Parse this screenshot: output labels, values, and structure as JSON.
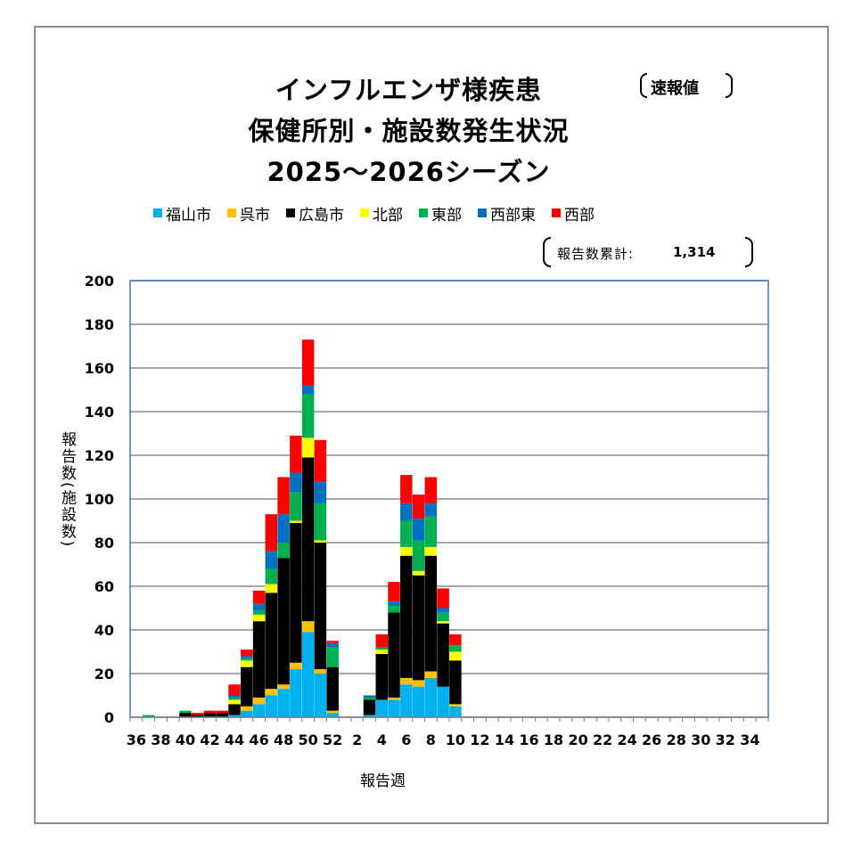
{
  "chart_data": {
    "type": "bar",
    "stacked": true,
    "title_lines": [
      "インフルエンザ様疾患",
      "保健所別・施設数発生状況",
      "2025～2026シーズン"
    ],
    "badge": "速報値",
    "total_label": "報告数累計:",
    "total_value": "1,314",
    "xlabel": "報告週",
    "ylabel": "報告数(施設数)",
    "ylim": [
      0,
      200
    ],
    "yticks": [
      0,
      20,
      40,
      60,
      80,
      100,
      120,
      140,
      160,
      180,
      200
    ],
    "grid": true,
    "legend_position": "top",
    "categories": [
      36,
      37,
      38,
      39,
      40,
      41,
      42,
      43,
      44,
      45,
      46,
      47,
      48,
      49,
      50,
      51,
      52,
      1,
      2,
      3,
      4,
      5,
      6,
      7,
      8,
      9,
      10,
      11,
      12,
      13,
      14,
      15,
      16,
      17,
      18,
      19,
      20,
      21,
      22,
      23,
      24,
      25,
      26,
      27,
      28,
      29,
      30,
      31,
      32,
      33,
      34,
      35
    ],
    "xtick_labels": [
      "36",
      "38",
      "40",
      "42",
      "44",
      "46",
      "48",
      "50",
      "52",
      "2",
      "4",
      "6",
      "8",
      "10",
      "12",
      "14",
      "16",
      "18",
      "20",
      "22",
      "24",
      "26",
      "28",
      "30",
      "32",
      "34"
    ],
    "series": [
      {
        "name": "福山市",
        "color": "#00B0F0",
        "values": [
          0,
          0,
          0,
          0,
          0,
          0,
          0,
          0,
          1,
          3,
          6,
          10,
          13,
          22,
          39,
          20,
          2,
          0,
          0,
          1,
          8,
          8,
          15,
          14,
          18,
          14,
          5,
          0,
          0,
          0,
          0,
          0,
          0,
          0,
          0,
          0,
          0,
          0,
          0,
          0,
          0,
          0,
          0,
          0,
          0,
          0,
          0,
          0,
          0,
          0,
          0,
          0
        ]
      },
      {
        "name": "呉市",
        "color": "#FFC000",
        "values": [
          0,
          0,
          0,
          0,
          0,
          0,
          0,
          0,
          0,
          2,
          3,
          3,
          2,
          3,
          5,
          2,
          1,
          0,
          0,
          0,
          0,
          1,
          3,
          3,
          3,
          0,
          1,
          0,
          0,
          0,
          0,
          0,
          0,
          0,
          0,
          0,
          0,
          0,
          0,
          0,
          0,
          0,
          0,
          0,
          0,
          0,
          0,
          0,
          0,
          0,
          0,
          0
        ]
      },
      {
        "name": "広島市",
        "color": "#000000",
        "values": [
          0,
          0,
          0,
          0,
          2,
          1,
          2,
          2,
          5,
          18,
          35,
          44,
          58,
          64,
          75,
          58,
          20,
          0,
          0,
          7,
          21,
          39,
          56,
          48,
          53,
          29,
          20,
          0,
          0,
          0,
          0,
          0,
          0,
          0,
          0,
          0,
          0,
          0,
          0,
          0,
          0,
          0,
          0,
          0,
          0,
          0,
          0,
          0,
          0,
          0,
          0,
          0
        ]
      },
      {
        "name": "北部",
        "color": "#FFFF00",
        "values": [
          0,
          0,
          0,
          0,
          0,
          0,
          0,
          0,
          2,
          3,
          3,
          4,
          0,
          1,
          9,
          1,
          0,
          0,
          0,
          0,
          2,
          0,
          4,
          2,
          4,
          1,
          4,
          0,
          0,
          0,
          0,
          0,
          0,
          0,
          0,
          0,
          0,
          0,
          0,
          0,
          0,
          0,
          0,
          0,
          0,
          0,
          0,
          0,
          0,
          0,
          0,
          0
        ]
      },
      {
        "name": "東部",
        "color": "#00B050",
        "values": [
          0,
          1,
          0,
          0,
          1,
          0,
          0,
          0,
          1,
          1,
          2,
          7,
          7,
          13,
          20,
          17,
          9,
          0,
          0,
          1,
          1,
          3,
          12,
          14,
          14,
          4,
          3,
          0,
          0,
          0,
          0,
          0,
          0,
          0,
          0,
          0,
          0,
          0,
          0,
          0,
          0,
          0,
          0,
          0,
          0,
          0,
          0,
          0,
          0,
          0,
          0,
          0
        ]
      },
      {
        "name": "西部東",
        "color": "#0070C0",
        "values": [
          0,
          0,
          0,
          0,
          0,
          0,
          0,
          0,
          1,
          1,
          3,
          8,
          13,
          9,
          4,
          10,
          2,
          0,
          0,
          1,
          0,
          2,
          8,
          10,
          6,
          2,
          0,
          0,
          0,
          0,
          0,
          0,
          0,
          0,
          0,
          0,
          0,
          0,
          0,
          0,
          0,
          0,
          0,
          0,
          0,
          0,
          0,
          0,
          0,
          0,
          0,
          0
        ]
      },
      {
        "name": "西部",
        "color": "#FF0000",
        "values": [
          0,
          0,
          0,
          0,
          0,
          1,
          1,
          1,
          5,
          3,
          6,
          17,
          17,
          17,
          21,
          19,
          1,
          0,
          0,
          0,
          6,
          9,
          13,
          11,
          12,
          9,
          5,
          0,
          0,
          0,
          0,
          0,
          0,
          0,
          0,
          0,
          0,
          0,
          0,
          0,
          0,
          0,
          0,
          0,
          0,
          0,
          0,
          0,
          0,
          0,
          0,
          0
        ]
      }
    ]
  }
}
